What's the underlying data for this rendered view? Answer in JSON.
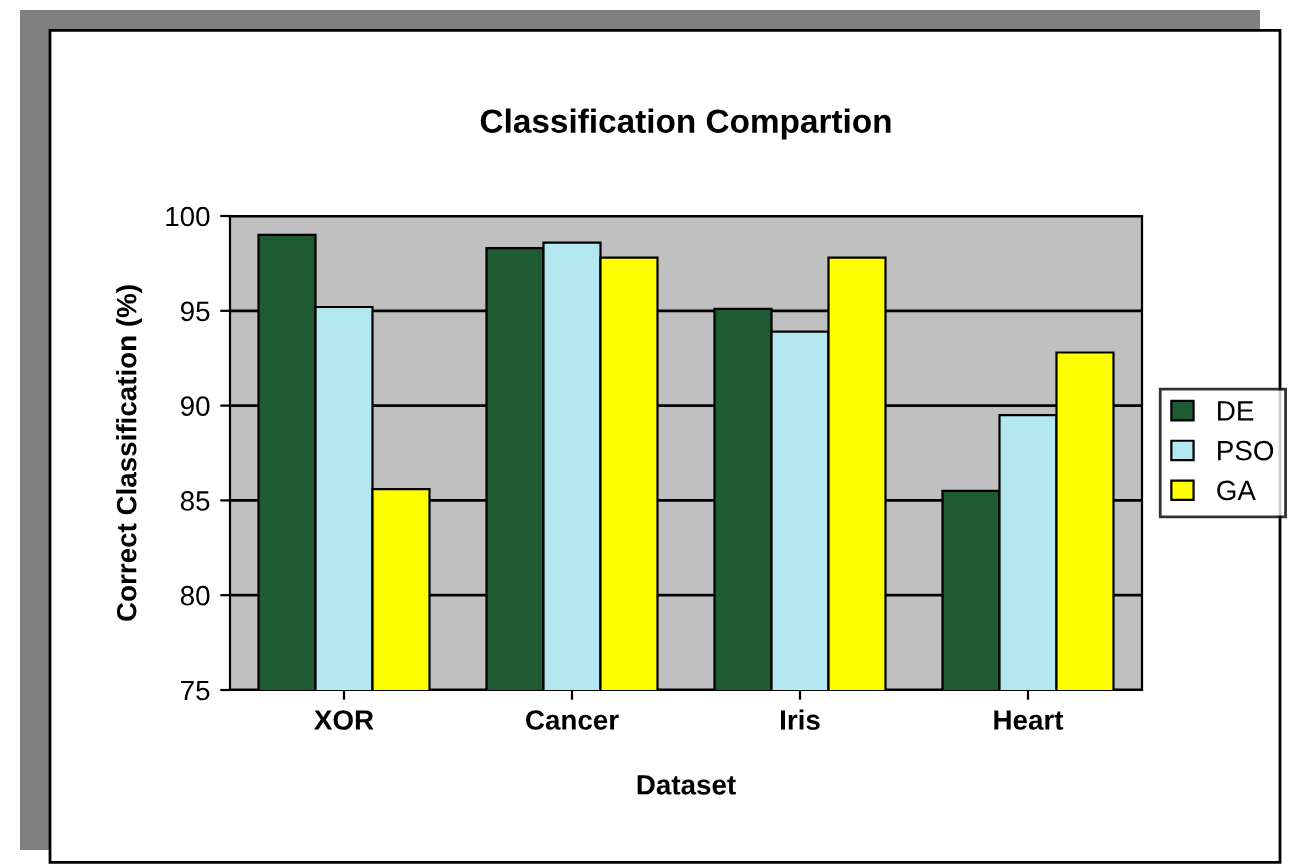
{
  "chart_data": {
    "type": "bar",
    "title": "Classification Compartion",
    "xlabel": "Dataset",
    "ylabel": "Correct Classification (%)",
    "categories": [
      "XOR",
      "Cancer",
      "Iris",
      "Heart"
    ],
    "series": [
      {
        "name": "DE",
        "color": "#1e5a32",
        "values": [
          99.0,
          98.3,
          95.1,
          85.5
        ]
      },
      {
        "name": "PSO",
        "color": "#b4e8f0",
        "values": [
          95.2,
          98.6,
          93.9,
          89.5
        ]
      },
      {
        "name": "GA",
        "color": "#ffff00",
        "values": [
          85.6,
          97.8,
          97.8,
          92.8
        ]
      }
    ],
    "ylim": [
      75,
      100
    ],
    "yticks": [
      75,
      80,
      85,
      90,
      95,
      100
    ],
    "grid": "y",
    "legend": "right"
  }
}
